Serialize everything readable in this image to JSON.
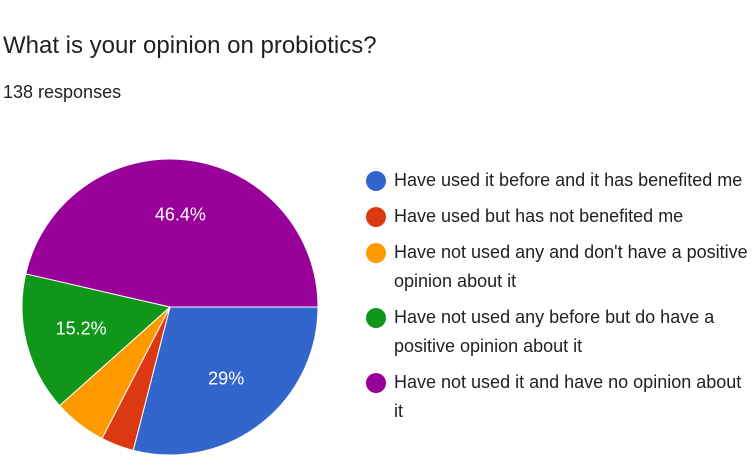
{
  "header": {
    "title": "What is your opinion on probiotics?",
    "responses": "138 responses"
  },
  "chart_data": {
    "type": "pie",
    "title": "What is your opinion on probiotics?",
    "subtitle": "138 responses",
    "legend_position": "right",
    "slices": [
      {
        "label": "Have used it before and it has benefited me",
        "value": 29.0,
        "display": "29%",
        "color": "#3366CC"
      },
      {
        "label": "Have used but has not benefited me",
        "value": 3.6,
        "display": "",
        "color": "#DC3912"
      },
      {
        "label": "Have not used any and don't have a positive opinion about it",
        "value": 5.8,
        "display": "",
        "color": "#FF9900"
      },
      {
        "label": "Have not used any before but do have a positive opinion about it",
        "value": 15.2,
        "display": "15.2%",
        "color": "#109618"
      },
      {
        "label": "Have not used it and have no opinion about it",
        "value": 46.4,
        "display": "46.4%",
        "color": "#990099"
      }
    ]
  }
}
